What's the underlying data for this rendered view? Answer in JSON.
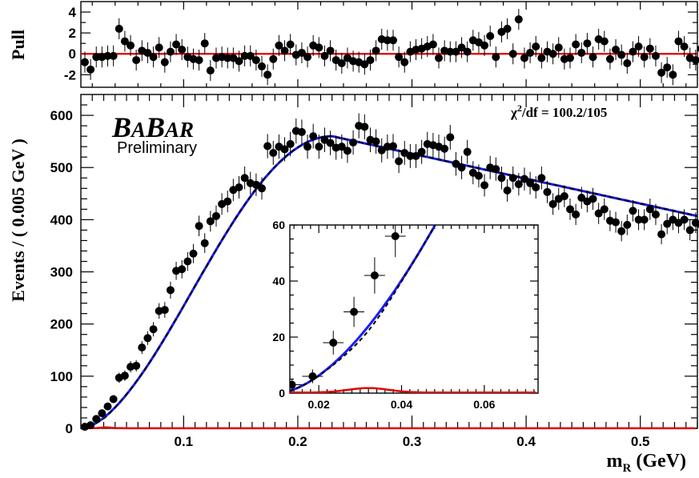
{
  "chart_data": [
    {
      "panel": "pull",
      "type": "scatter",
      "ylabel": "Pull",
      "xlim": [
        0.01,
        0.55
      ],
      "ylim": [
        -3.2,
        5
      ],
      "yticks": [
        "-2",
        "0",
        "2",
        "4"
      ],
      "reference_line": 0,
      "points": [
        [
          0.0135,
          -0.8
        ],
        [
          0.0185,
          -1.5
        ],
        [
          0.0235,
          -0.3
        ],
        [
          0.0285,
          -0.3
        ],
        [
          0.0335,
          -0.2
        ],
        [
          0.0385,
          -0.2
        ],
        [
          0.0435,
          2.4
        ],
        [
          0.0485,
          1.2
        ],
        [
          0.0535,
          0.8
        ],
        [
          0.0585,
          -0.6
        ],
        [
          0.0635,
          0.3
        ],
        [
          0.0685,
          0.1
        ],
        [
          0.0735,
          -0.3
        ],
        [
          0.0785,
          0.6
        ],
        [
          0.0835,
          -0.8
        ],
        [
          0.0885,
          0.2
        ],
        [
          0.0935,
          0.9
        ],
        [
          0.0985,
          0.4
        ],
        [
          0.1035,
          -0.3
        ],
        [
          0.1085,
          -0.5
        ],
        [
          0.1135,
          -0.6
        ],
        [
          0.1185,
          1.0
        ],
        [
          0.1235,
          -1.6
        ],
        [
          0.1285,
          -0.4
        ],
        [
          0.1335,
          -0.3
        ],
        [
          0.1385,
          -0.4
        ],
        [
          0.1435,
          -0.4
        ],
        [
          0.1485,
          -0.7
        ],
        [
          0.1535,
          -0.2
        ],
        [
          0.1585,
          -0.2
        ],
        [
          0.1635,
          -0.6
        ],
        [
          0.1685,
          -1.2
        ],
        [
          0.1735,
          -2.0
        ],
        [
          0.1785,
          -0.5
        ],
        [
          0.1835,
          0.8
        ],
        [
          0.1885,
          0.3
        ],
        [
          0.1935,
          0.9
        ],
        [
          0.1985,
          -0.1
        ],
        [
          0.2035,
          0.1
        ],
        [
          0.2085,
          -0.3
        ],
        [
          0.2135,
          0.8
        ],
        [
          0.2185,
          0.6
        ],
        [
          0.2235,
          -0.2
        ],
        [
          0.2285,
          0.3
        ],
        [
          0.2335,
          -0.6
        ],
        [
          0.2385,
          -0.9
        ],
        [
          0.2435,
          -0.4
        ],
        [
          0.2485,
          -0.7
        ],
        [
          0.2535,
          -0.8
        ],
        [
          0.2585,
          -1.0
        ],
        [
          0.2635,
          -0.6
        ],
        [
          0.2685,
          0.3
        ],
        [
          0.2735,
          1.4
        ],
        [
          0.2785,
          1.3
        ],
        [
          0.2835,
          1.3
        ],
        [
          0.2885,
          -0.3
        ],
        [
          0.2935,
          -0.8
        ],
        [
          0.2985,
          0.2
        ],
        [
          0.3035,
          0.4
        ],
        [
          0.3085,
          0.5
        ],
        [
          0.3135,
          0.7
        ],
        [
          0.3185,
          0.9
        ],
        [
          0.3235,
          -0.4
        ],
        [
          0.3285,
          0.3
        ],
        [
          0.3335,
          0.2
        ],
        [
          0.3385,
          0.2
        ],
        [
          0.3435,
          0.6
        ],
        [
          0.3485,
          0.2
        ],
        [
          0.3535,
          1.3
        ],
        [
          0.3585,
          1.1
        ],
        [
          0.3635,
          0.8
        ],
        [
          0.3685,
          1.7
        ],
        [
          0.3735,
          -0.3
        ],
        [
          0.3785,
          2.1
        ],
        [
          0.3835,
          2.4
        ],
        [
          0.3885,
          0.0
        ],
        [
          0.3935,
          3.3
        ],
        [
          0.3985,
          -0.4
        ],
        [
          0.4035,
          0.1
        ],
        [
          0.4085,
          0.7
        ],
        [
          0.4135,
          -0.4
        ],
        [
          0.4185,
          0.2
        ],
        [
          0.4235,
          0.0
        ],
        [
          0.4285,
          0.6
        ],
        [
          0.4335,
          -0.5
        ],
        [
          0.4385,
          -0.4
        ],
        [
          0.4435,
          0.9
        ],
        [
          0.4485,
          0.1
        ],
        [
          0.4535,
          1.0
        ],
        [
          0.4585,
          -0.3
        ],
        [
          0.4635,
          1.4
        ],
        [
          0.4685,
          1.2
        ],
        [
          0.4735,
          -0.5
        ],
        [
          0.4785,
          0.4
        ],
        [
          0.4835,
          -0.1
        ],
        [
          0.4885,
          -0.9
        ],
        [
          0.4935,
          0.2
        ],
        [
          0.4985,
          0.7
        ],
        [
          0.5035,
          -0.3
        ],
        [
          0.5085,
          0.5
        ],
        [
          0.5135,
          -0.2
        ],
        [
          0.5185,
          -1.8
        ],
        [
          0.5235,
          -1.3
        ],
        [
          0.5285,
          -2.0
        ],
        [
          0.5335,
          1.2
        ],
        [
          0.5385,
          0.7
        ],
        [
          0.5435,
          -0.4
        ],
        [
          0.5485,
          -0.6
        ],
        [
          0.5535,
          0.5
        ],
        [
          0.5585,
          -0.4
        ],
        [
          0.5635,
          -0.2
        ],
        [
          0.5685,
          0.0
        ],
        [
          0.5735,
          -0.5
        ]
      ]
    },
    {
      "panel": "main",
      "type": "scatter",
      "xlabel": "m_R (GeV)",
      "ylabel": "Events / ( 0.005 GeV )",
      "xlim": [
        0.01,
        0.55
      ],
      "ylim": [
        0,
        640
      ],
      "xticks": [
        "0.1",
        "0.2",
        "0.3",
        "0.4",
        "0.5"
      ],
      "yticks": [
        "0",
        "100",
        "200",
        "300",
        "400",
        "500",
        "600"
      ],
      "annotation": "χ²/df = 100.2/105",
      "logo": "BABAR",
      "logo_subtitle": "Preliminary",
      "fit_color": "#1a1aff",
      "background_color": "#e00000",
      "points": [
        [
          0.0135,
          3
        ],
        [
          0.0185,
          6
        ],
        [
          0.0235,
          18
        ],
        [
          0.0285,
          29
        ],
        [
          0.0335,
          42
        ],
        [
          0.0385,
          56
        ],
        [
          0.0435,
          97
        ],
        [
          0.0485,
          101
        ],
        [
          0.0535,
          118
        ],
        [
          0.0585,
          120
        ],
        [
          0.0635,
          155
        ],
        [
          0.0685,
          173
        ],
        [
          0.0735,
          190
        ],
        [
          0.0785,
          225
        ],
        [
          0.0835,
          227
        ],
        [
          0.0885,
          265
        ],
        [
          0.0935,
          302
        ],
        [
          0.0985,
          305
        ],
        [
          0.1035,
          320
        ],
        [
          0.1085,
          335
        ],
        [
          0.1135,
          388
        ],
        [
          0.1185,
          355
        ],
        [
          0.1235,
          397
        ],
        [
          0.1285,
          407
        ],
        [
          0.1335,
          430
        ],
        [
          0.1385,
          435
        ],
        [
          0.1435,
          457
        ],
        [
          0.1485,
          462
        ],
        [
          0.1535,
          480
        ],
        [
          0.1585,
          470
        ],
        [
          0.1635,
          467
        ],
        [
          0.1685,
          460
        ],
        [
          0.1735,
          541
        ],
        [
          0.1785,
          528
        ],
        [
          0.1835,
          540
        ],
        [
          0.1885,
          535
        ],
        [
          0.1935,
          545
        ],
        [
          0.1985,
          570
        ],
        [
          0.2035,
          568
        ],
        [
          0.2085,
          540
        ],
        [
          0.2135,
          560
        ],
        [
          0.2185,
          540
        ],
        [
          0.2235,
          553
        ],
        [
          0.2285,
          547
        ],
        [
          0.2335,
          538
        ],
        [
          0.2385,
          540
        ],
        [
          0.2435,
          532
        ],
        [
          0.2485,
          548
        ],
        [
          0.2535,
          580
        ],
        [
          0.2585,
          578
        ],
        [
          0.2635,
          553
        ],
        [
          0.2685,
          550
        ],
        [
          0.2735,
          533
        ],
        [
          0.2785,
          540
        ],
        [
          0.2835,
          541
        ],
        [
          0.2885,
          512
        ],
        [
          0.2935,
          528
        ],
        [
          0.2985,
          522
        ],
        [
          0.3035,
          522
        ],
        [
          0.3085,
          530
        ],
        [
          0.3135,
          545
        ],
        [
          0.3185,
          543
        ],
        [
          0.3235,
          540
        ],
        [
          0.3285,
          536
        ],
        [
          0.3335,
          558
        ],
        [
          0.3385,
          507
        ],
        [
          0.3435,
          500
        ],
        [
          0.3485,
          530
        ],
        [
          0.3535,
          490
        ],
        [
          0.3585,
          484
        ],
        [
          0.3635,
          466
        ],
        [
          0.3685,
          500
        ],
        [
          0.3735,
          497
        ],
        [
          0.3785,
          480
        ],
        [
          0.3835,
          456
        ],
        [
          0.3885,
          480
        ],
        [
          0.3935,
          468
        ],
        [
          0.3985,
          478
        ],
        [
          0.4035,
          470
        ],
        [
          0.4085,
          462
        ],
        [
          0.4135,
          480
        ],
        [
          0.4185,
          453
        ],
        [
          0.4235,
          430
        ],
        [
          0.4285,
          440
        ],
        [
          0.4335,
          445
        ],
        [
          0.4385,
          420
        ],
        [
          0.4435,
          410
        ],
        [
          0.4485,
          442
        ],
        [
          0.4535,
          435
        ],
        [
          0.4585,
          440
        ],
        [
          0.4635,
          412
        ],
        [
          0.4685,
          420
        ],
        [
          0.4735,
          398
        ],
        [
          0.4785,
          395
        ],
        [
          0.4835,
          378
        ],
        [
          0.4885,
          390
        ],
        [
          0.4935,
          417
        ],
        [
          0.4985,
          400
        ],
        [
          0.5035,
          400
        ],
        [
          0.5085,
          420
        ],
        [
          0.5135,
          410
        ],
        [
          0.5185,
          372
        ],
        [
          0.5235,
          392
        ],
        [
          0.5285,
          400
        ],
        [
          0.5335,
          394
        ],
        [
          0.5385,
          400
        ],
        [
          0.5435,
          380
        ],
        [
          0.5485,
          394
        ],
        [
          0.5535,
          390
        ],
        [
          0.5585,
          402
        ],
        [
          0.5635,
          386
        ],
        [
          0.5685,
          395
        ],
        [
          0.5735,
          390
        ]
      ],
      "outlier_point": [
        0.4033,
        558
      ],
      "inset": {
        "xlim": [
          0.013,
          0.073
        ],
        "ylim": [
          0,
          60
        ],
        "xticks": [
          "0.02",
          "0.04",
          "0.06"
        ],
        "yticks": [
          "0",
          "20",
          "40",
          "60"
        ],
        "points": [
          [
            0.0135,
            3
          ],
          [
            0.0185,
            6
          ],
          [
            0.0235,
            18
          ],
          [
            0.0285,
            29
          ],
          [
            0.0335,
            42
          ],
          [
            0.0385,
            56
          ]
        ]
      }
    }
  ]
}
